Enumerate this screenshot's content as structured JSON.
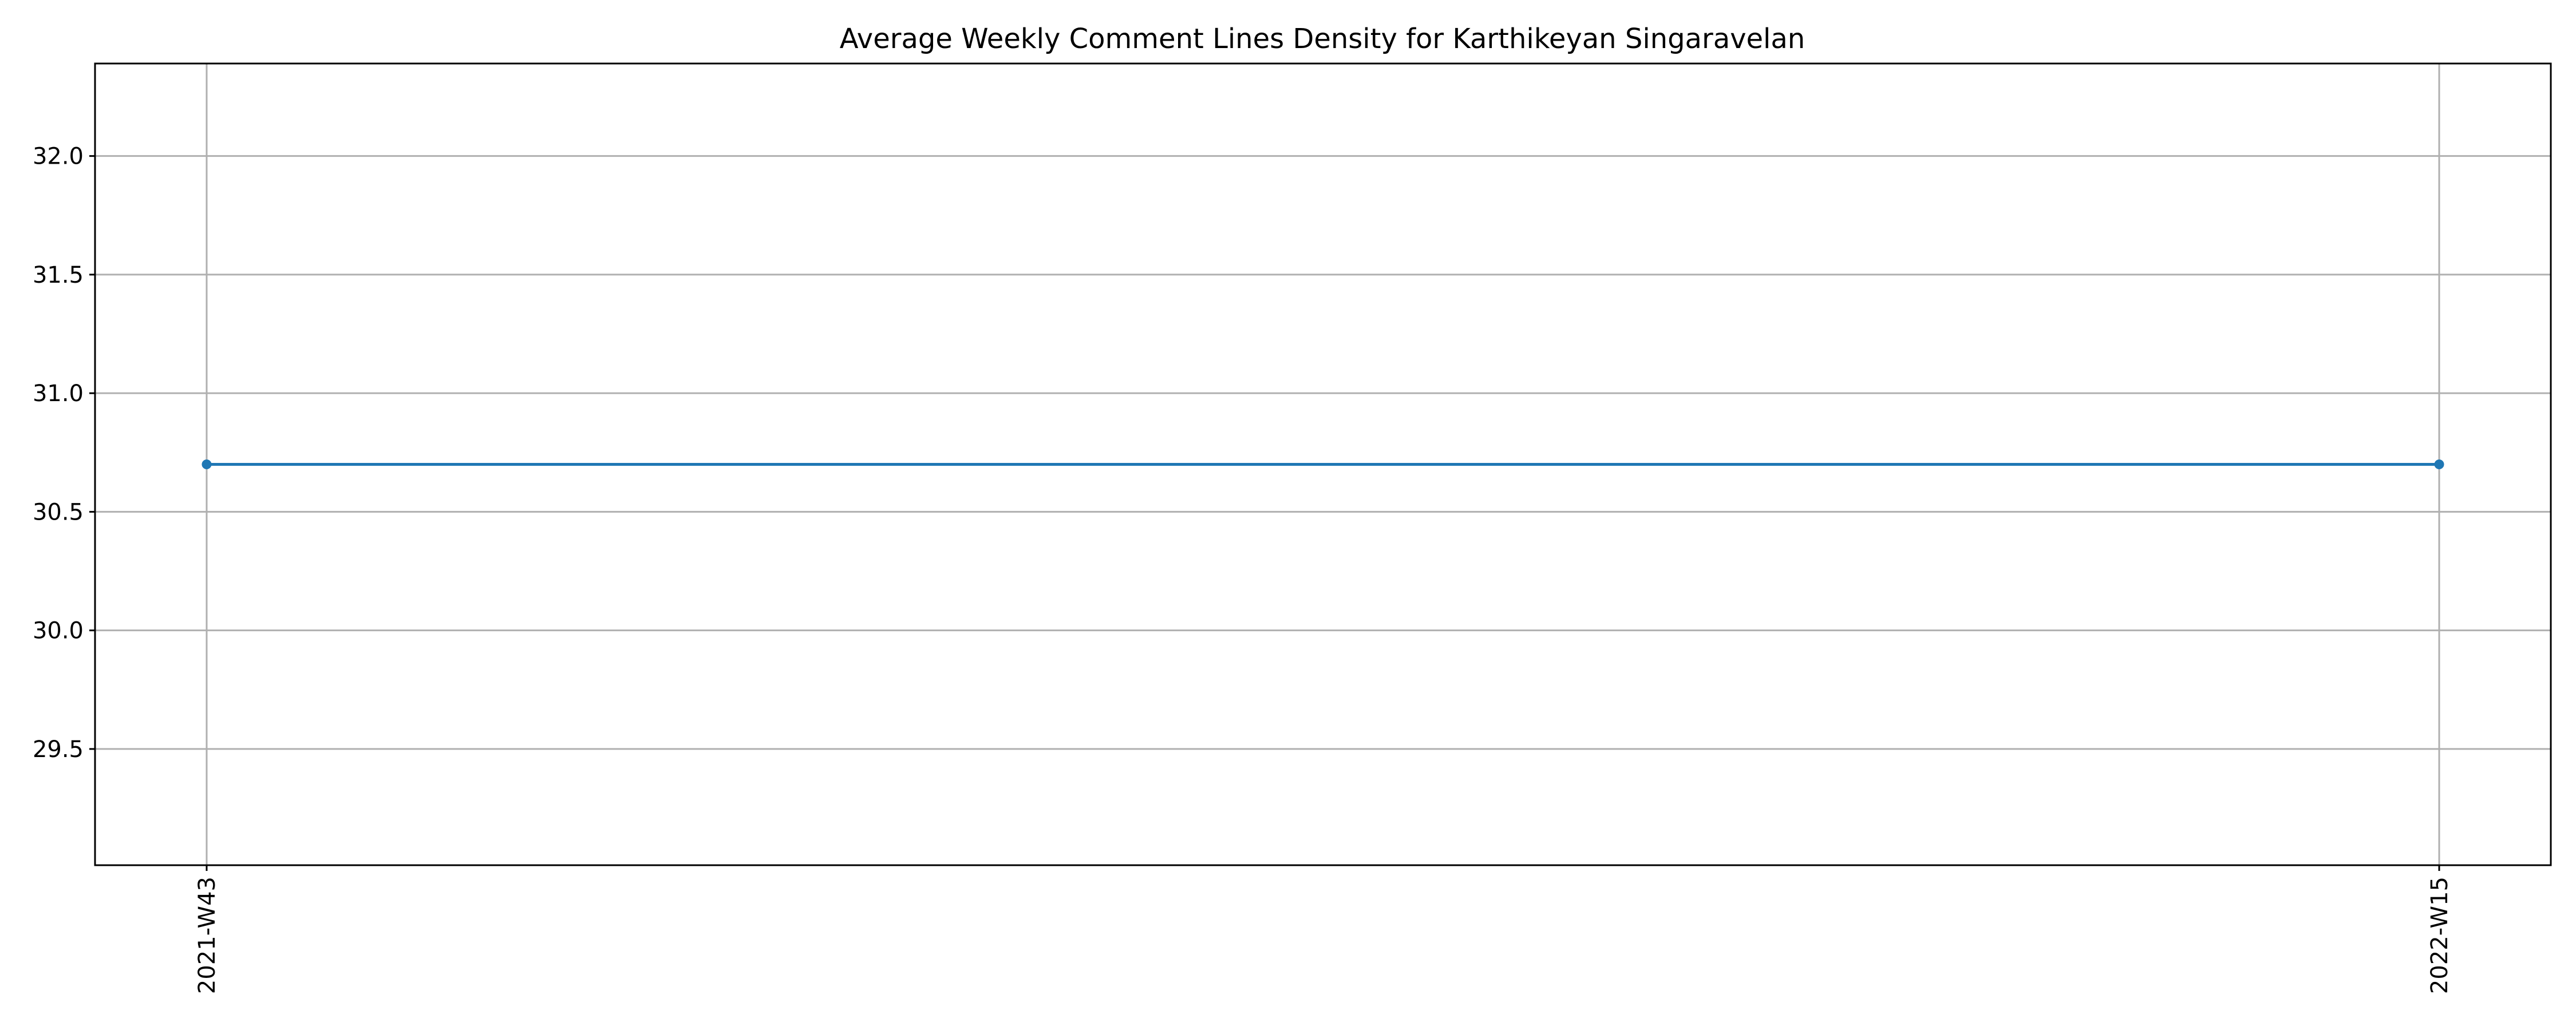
{
  "chart_data": {
    "type": "line",
    "title": "Average Weekly Comment Lines Density for Karthikeyan Singaravelan",
    "xlabel": "",
    "ylabel": "",
    "categories": [
      "2021-W43",
      "2022-W15"
    ],
    "series": [
      {
        "values": [
          30.7,
          30.7
        ],
        "color": "#1f77b4",
        "marker": "circle"
      }
    ],
    "ylim": [
      29.01,
      32.39
    ],
    "yticks": [
      29.5,
      30.0,
      30.5,
      31.0,
      31.5,
      32.0
    ],
    "ytick_labels": [
      "29.5",
      "30.0",
      "30.5",
      "31.0",
      "31.5",
      "32.0"
    ],
    "xtick_rotation": 90,
    "grid": true,
    "legend": "none"
  }
}
